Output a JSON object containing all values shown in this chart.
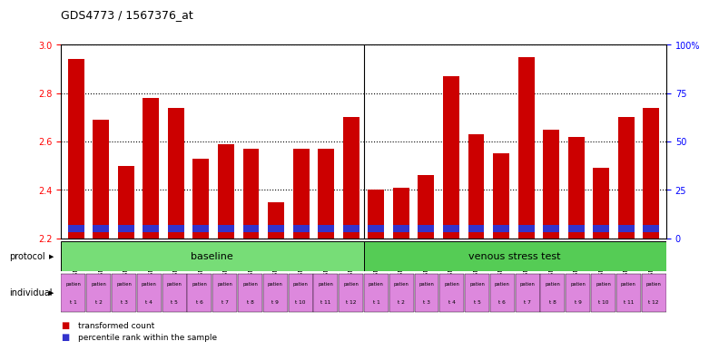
{
  "title": "GDS4773 / 1567376_at",
  "gsm_labels": [
    "GSM949415",
    "GSM949417",
    "GSM949419",
    "GSM949421",
    "GSM949423",
    "GSM949425",
    "GSM949427",
    "GSM949429",
    "GSM949431",
    "GSM949433",
    "GSM949435",
    "GSM949437",
    "GSM949416",
    "GSM949418",
    "GSM949420",
    "GSM949422",
    "GSM949424",
    "GSM949426",
    "GSM949428",
    "GSM949430",
    "GSM949432",
    "GSM949434",
    "GSM949436",
    "GSM949438"
  ],
  "transformed_count": [
    2.94,
    2.69,
    2.5,
    2.78,
    2.74,
    2.53,
    2.59,
    2.57,
    2.35,
    2.57,
    2.57,
    2.7,
    2.4,
    2.41,
    2.46,
    2.87,
    2.63,
    2.55,
    2.95,
    2.65,
    2.62,
    2.49,
    2.7,
    2.74
  ],
  "ylim_left": [
    2.2,
    3.0
  ],
  "ylim_right": [
    0,
    100
  ],
  "yticks_left": [
    2.2,
    2.4,
    2.6,
    2.8,
    3.0
  ],
  "yticks_right": [
    0,
    25,
    50,
    75,
    100
  ],
  "ytick_labels_right": [
    "0",
    "25",
    "50",
    "75",
    "100%"
  ],
  "bar_color_red": "#cc0000",
  "bar_color_blue": "#3333cc",
  "baseline_color": "#77dd77",
  "venous_color": "#55cc55",
  "individual_color": "#dd88dd",
  "protocol_labels": [
    "baseline",
    "venous stress test"
  ],
  "n_baseline": 12,
  "n_venous": 12,
  "base_level": 2.2,
  "blue_bar_bottom": 2.225,
  "blue_bar_height": 0.03,
  "individual_top_text": "patien",
  "individual_labels_baseline": [
    "t 1",
    "t 2",
    "t 3",
    "t 4",
    "t 5",
    "t 6",
    "t 7",
    "t 8",
    "t 9",
    "t 10",
    "t 11",
    "t 12"
  ],
  "individual_labels_venous": [
    "t 1",
    "t 2",
    "t 3",
    "t 4",
    "t 5",
    "t 6",
    "t 7",
    "t 8",
    "t 9",
    "t 10",
    "t 11",
    "t 12"
  ]
}
